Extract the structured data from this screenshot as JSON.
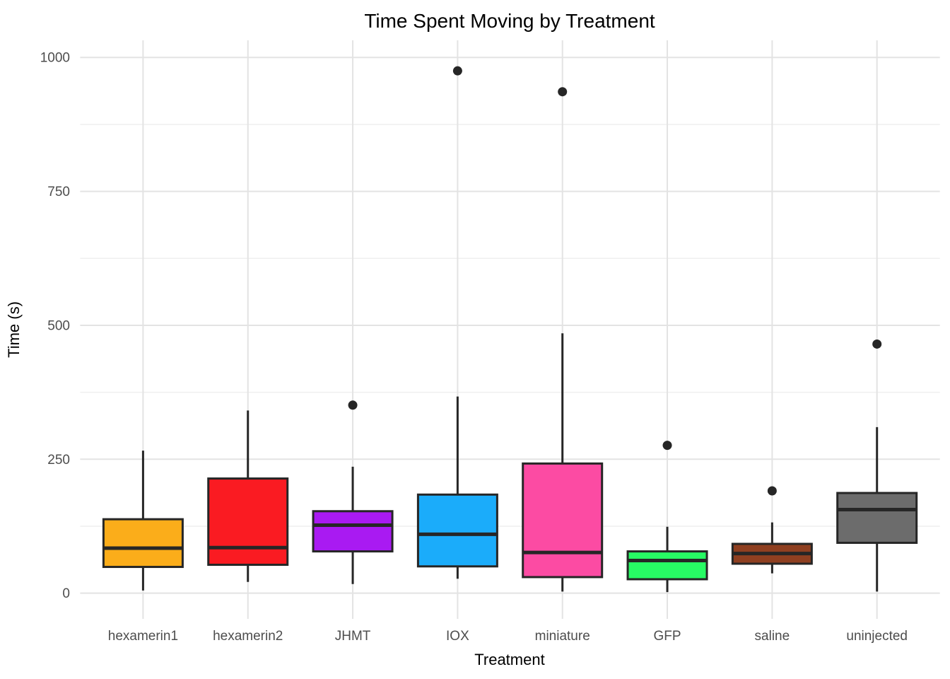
{
  "title": "Time Spent Moving by Treatment",
  "chart_data": {
    "type": "boxplot",
    "title": "Time Spent Moving by Treatment",
    "xlabel": "Treatment",
    "ylabel": "Time (s)",
    "categories": [
      "hexamerin1",
      "hexamerin2",
      "JHMT",
      "IOX",
      "miniature",
      "GFP",
      "saline",
      "uninjected"
    ],
    "yticks": [
      0,
      250,
      500,
      750,
      1000
    ],
    "yticks_minor": [
      125,
      375,
      625,
      875
    ],
    "ylim": [
      -48,
      1032
    ],
    "grid": {
      "horizontal": "major+minor",
      "vertical": "major-at-categories"
    },
    "legend": "none",
    "series": [
      {
        "name": "hexamerin1",
        "fill": "#FBAD1A",
        "low": 5,
        "q1": 49,
        "median": 84,
        "q3": 138,
        "high": 266,
        "outliers": []
      },
      {
        "name": "hexamerin2",
        "fill": "#FA1B22",
        "low": 21,
        "q1": 53,
        "median": 85,
        "q3": 214,
        "high": 341,
        "outliers": []
      },
      {
        "name": "JHMT",
        "fill": "#A91AF2",
        "low": 17,
        "q1": 78,
        "median": 127,
        "q3": 153,
        "high": 236,
        "outliers": [
          351
        ]
      },
      {
        "name": "IOX",
        "fill": "#1BACFA",
        "low": 27,
        "q1": 50,
        "median": 110,
        "q3": 184,
        "high": 367,
        "outliers": [
          975
        ]
      },
      {
        "name": "miniature",
        "fill": "#FC4BA3",
        "low": 3,
        "q1": 30,
        "median": 76,
        "q3": 242,
        "high": 485,
        "outliers": [
          936
        ]
      },
      {
        "name": "GFP",
        "fill": "#27FB64",
        "low": 2,
        "q1": 26,
        "median": 61,
        "q3": 78,
        "high": 124,
        "outliers": [
          276
        ]
      },
      {
        "name": "saline",
        "fill": "#8F3F20",
        "low": 37,
        "q1": 55,
        "median": 74,
        "q3": 92,
        "high": 132,
        "outliers": [
          191
        ]
      },
      {
        "name": "uninjected",
        "fill": "#6C6C6C",
        "low": 3,
        "q1": 94,
        "median": 156,
        "q3": 187,
        "high": 310,
        "outliers": [
          465
        ]
      }
    ],
    "style": {
      "box_stroke": "#262626",
      "grid_major": "#E3E3E3",
      "grid_minor": "#EFEFEF",
      "tick_label_color": "#4D4D4D",
      "text_color": "#000000",
      "background": "#FFFFFF"
    }
  }
}
